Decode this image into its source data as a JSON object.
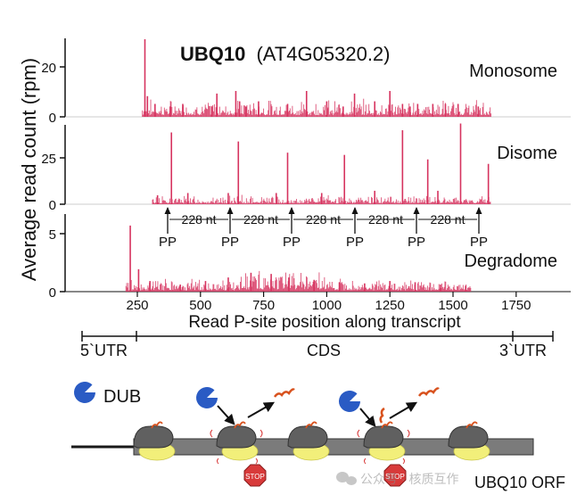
{
  "title": {
    "gene": "UBQ10",
    "transcript": "(AT4G05320.2)"
  },
  "y_axis_label": "Average read count (rpm)",
  "x_axis_label": "Read P-site position along transcript",
  "panels": [
    {
      "name": "Monosome",
      "yticks": [
        "0",
        "20"
      ]
    },
    {
      "name": "Disome",
      "yticks": [
        "0",
        "25"
      ]
    },
    {
      "name": "Degradome",
      "yticks": [
        "0",
        "5"
      ]
    }
  ],
  "x_ticks": [
    "250",
    "500",
    "750",
    "1000",
    "1250",
    "1500",
    "1750"
  ],
  "spacing_labels": [
    "228 nt",
    "228 nt",
    "228 nt",
    "228 nt",
    "228 nt"
  ],
  "pp_labels": [
    "PP",
    "PP",
    "PP",
    "PP",
    "PP",
    "PP"
  ],
  "regions": {
    "utr5": "5`UTR",
    "cds": "CDS",
    "utr3": "3`UTR"
  },
  "schematic": {
    "dub_label": "DUB",
    "stop_label": "STOP",
    "orf_label": "UBQ10 ORF",
    "watermark": "公众号 · 核质互作"
  },
  "colors": {
    "signal": "#d6335f",
    "ribosome": "#606060",
    "yellow": "#f2ef7a",
    "dub": "#2a5bc4",
    "stop": "#d83a3a",
    "ubiquitin": "#d8521e"
  },
  "chart_data": [
    {
      "type": "bar",
      "series": [
        {
          "name": "Monosome",
          "x": [
            280,
            290,
            320,
            380,
            430,
            545,
            565,
            640,
            655,
            680,
            730,
            845,
            920,
            1000,
            1065,
            1110,
            1190,
            1250,
            1300,
            1330,
            1360,
            1420,
            1470,
            1520,
            1600
          ],
          "values": [
            30,
            8,
            5,
            4,
            5,
            4,
            9,
            10,
            6,
            4,
            6,
            5,
            10,
            6,
            4,
            9,
            6,
            10,
            5,
            4,
            5,
            5,
            5,
            5,
            4
          ]
        }
      ],
      "xlim": [
        100,
        1800
      ],
      "ylim": [
        0,
        30
      ]
    },
    {
      "type": "bar",
      "series": [
        {
          "name": "Disome",
          "x": [
            330,
            385,
            450,
            610,
            650,
            800,
            845,
            980,
            1070,
            1190,
            1300,
            1400,
            1440,
            1530,
            1640
          ],
          "values": [
            4,
            32,
            5,
            5,
            28,
            5,
            23,
            5,
            22,
            6,
            33,
            20,
            6,
            36,
            18
          ]
        }
      ],
      "xlim": [
        100,
        1800
      ],
      "ylim": [
        0,
        35
      ]
    },
    {
      "type": "bar",
      "series": [
        {
          "name": "Degradome",
          "x": [
            222,
            255,
            300,
            420,
            520,
            610,
            700,
            780,
            850,
            950,
            1050,
            1150,
            1250,
            1350,
            1450,
            1550
          ],
          "values": [
            5.6,
            1.9,
            0.9,
            0.6,
            0.9,
            1.2,
            1.6,
            1.5,
            1.2,
            1.0,
            0.8,
            0.7,
            0.9,
            0.8,
            0.6,
            0.5
          ]
        }
      ],
      "xlim": [
        100,
        1800
      ],
      "ylim": [
        0,
        6.5
      ]
    }
  ]
}
